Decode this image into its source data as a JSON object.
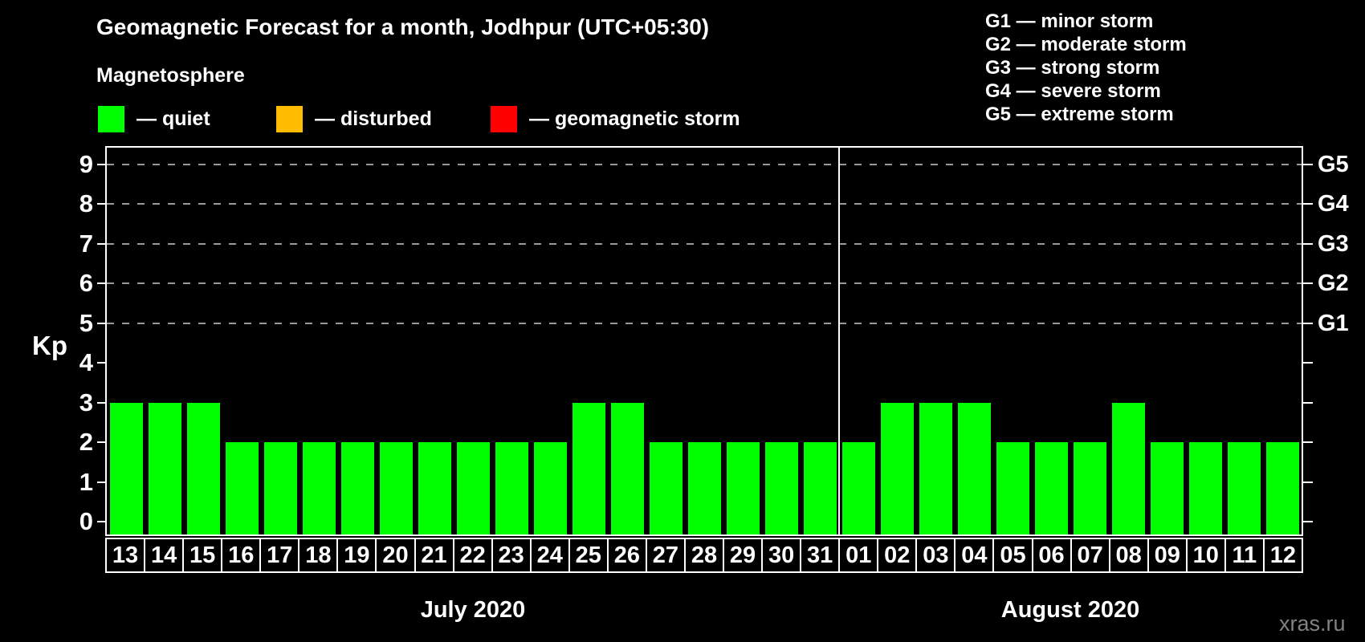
{
  "header": {
    "title": "Geomagnetic Forecast for a month, Jodhpur (UTC+05:30)",
    "subtitle": "Magnetosphere",
    "legend": [
      {
        "id": "quiet",
        "label": "— quiet",
        "color": "#00ff00"
      },
      {
        "id": "disturbed",
        "label": "— disturbed",
        "color": "#ffbc00"
      },
      {
        "id": "storm",
        "label": "— geomagnetic storm",
        "color": "#ff0000"
      }
    ],
    "g_scale_legend": [
      {
        "label": "G1 — minor storm"
      },
      {
        "label": "G2 — moderate storm"
      },
      {
        "label": "G3 — strong storm"
      },
      {
        "label": "G4 — severe storm"
      },
      {
        "label": "G5 — extreme storm"
      }
    ]
  },
  "watermark": "xras.ru",
  "chart_data": {
    "type": "bar",
    "title": "Geomagnetic Forecast for a month, Jodhpur (UTC+05:30)",
    "ylabel": "Kp",
    "ylim": [
      0,
      9
    ],
    "yticks": [
      0,
      1,
      2,
      3,
      4,
      5,
      6,
      7,
      8,
      9
    ],
    "gridline_levels": [
      5,
      6,
      7,
      8,
      9
    ],
    "right_axis": [
      {
        "level": 5,
        "label": "G1"
      },
      {
        "level": 6,
        "label": "G2"
      },
      {
        "level": 7,
        "label": "G3"
      },
      {
        "level": 8,
        "label": "G4"
      },
      {
        "level": 9,
        "label": "G5"
      }
    ],
    "bar_color": "#00ff00",
    "bar_status": "quiet",
    "months": [
      {
        "label": "July 2020",
        "days": [
          "13",
          "14",
          "15",
          "16",
          "17",
          "18",
          "19",
          "20",
          "21",
          "22",
          "23",
          "24",
          "25",
          "26",
          "27",
          "28",
          "29",
          "30",
          "31"
        ],
        "values": [
          3,
          3,
          3,
          2,
          2,
          2,
          2,
          2,
          2,
          2,
          2,
          2,
          3,
          3,
          2,
          2,
          2,
          2,
          2
        ]
      },
      {
        "label": "August 2020",
        "days": [
          "01",
          "02",
          "03",
          "04",
          "05",
          "06",
          "07",
          "08",
          "09",
          "10",
          "11",
          "12"
        ],
        "values": [
          2,
          3,
          3,
          3,
          2,
          2,
          2,
          3,
          2,
          2,
          2,
          2
        ]
      }
    ]
  }
}
